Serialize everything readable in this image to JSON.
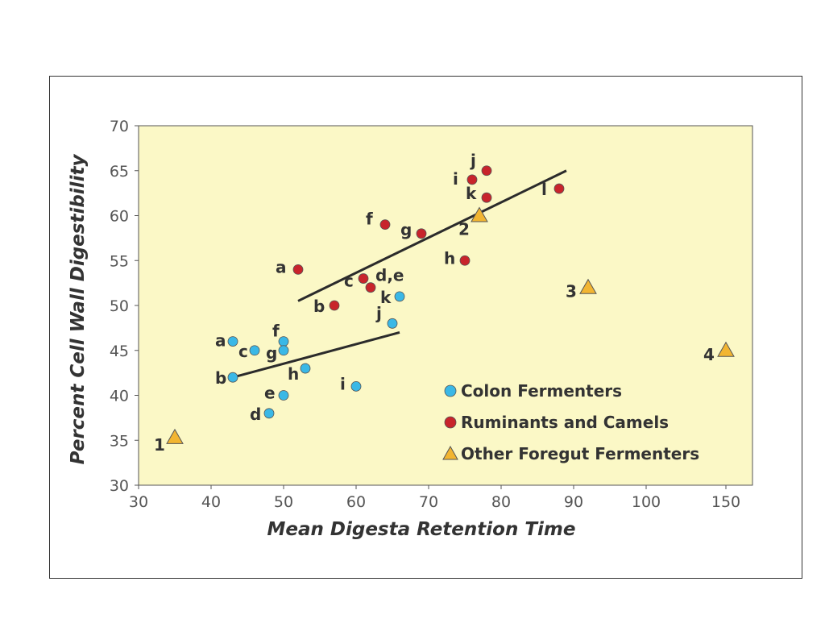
{
  "chart_data": {
    "type": "scatter",
    "xlabel": "Mean Digesta Retention Time",
    "ylabel": "Percent Cell Wall Digestibility",
    "xlim": [
      30,
      155
    ],
    "ylim": [
      30,
      70
    ],
    "x_ticks": [
      "30",
      "40",
      "50",
      "60",
      "70",
      "80",
      "90",
      "100",
      "150"
    ],
    "y_ticks": [
      "30",
      "35",
      "40",
      "45",
      "50",
      "55",
      "60",
      "65",
      "70"
    ],
    "x_axis_note": "x axis is broken between 100 and 150",
    "grid": false,
    "background_color": "#fbf8c6",
    "legend_position": "bottom-right",
    "series": [
      {
        "name": "Colon Fermenters",
        "marker": "circle",
        "color": "#3ab8e6",
        "points": [
          {
            "label": "a",
            "x": 43,
            "y": 46
          },
          {
            "label": "b",
            "x": 43,
            "y": 42
          },
          {
            "label": "c",
            "x": 46,
            "y": 45
          },
          {
            "label": "d",
            "x": 48,
            "y": 38
          },
          {
            "label": "e",
            "x": 50,
            "y": 40
          },
          {
            "label": "f",
            "x": 50,
            "y": 46
          },
          {
            "label": "g",
            "x": 50,
            "y": 45
          },
          {
            "label": "h",
            "x": 53,
            "y": 43
          },
          {
            "label": "i",
            "x": 60,
            "y": 41
          },
          {
            "label": "j",
            "x": 65,
            "y": 48
          },
          {
            "label": "k",
            "x": 66,
            "y": 51
          }
        ],
        "trend": {
          "x": [
            43,
            66
          ],
          "y": [
            42,
            47
          ]
        }
      },
      {
        "name": "Ruminants and Camels",
        "marker": "circle",
        "color": "#c8242b",
        "points": [
          {
            "label": "a",
            "x": 52,
            "y": 54
          },
          {
            "label": "b",
            "x": 57,
            "y": 50
          },
          {
            "label": "c",
            "x": 61,
            "y": 53
          },
          {
            "label": "d,e",
            "x": 62,
            "y": 52
          },
          {
            "label": "f",
            "x": 64,
            "y": 59
          },
          {
            "label": "g",
            "x": 69,
            "y": 58
          },
          {
            "label": "h",
            "x": 75,
            "y": 55
          },
          {
            "label": "i",
            "x": 76,
            "y": 64
          },
          {
            "label": "j",
            "x": 78,
            "y": 65
          },
          {
            "label": "k",
            "x": 78,
            "y": 62
          },
          {
            "label": "l",
            "x": 88,
            "y": 63
          }
        ],
        "trend": {
          "x": [
            52,
            89
          ],
          "y": [
            50.5,
            65
          ]
        }
      },
      {
        "name": "Other Foregut Fermenters",
        "marker": "triangle",
        "color": "#f2b531",
        "points": [
          {
            "label": "1",
            "x": 35,
            "y": 35.3
          },
          {
            "label": "2",
            "x": 77,
            "y": 60
          },
          {
            "label": "3",
            "x": 92,
            "y": 52
          },
          {
            "label": "4",
            "x": 150,
            "y": 45
          }
        ]
      }
    ]
  }
}
